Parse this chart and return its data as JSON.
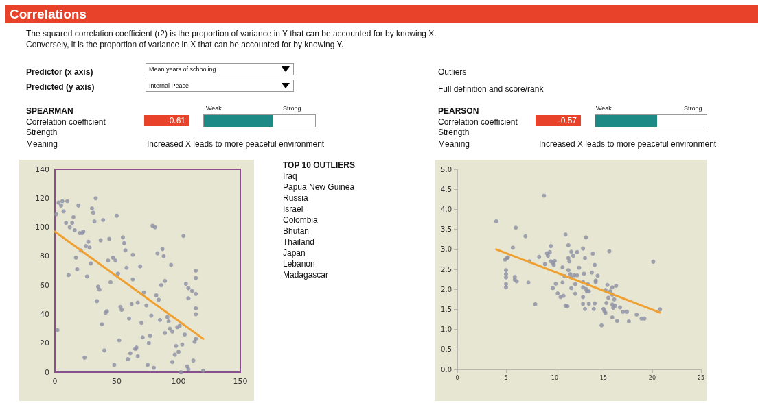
{
  "chart_data": [
    {
      "type": "other",
      "title": "Correlations",
      "annotations": [
        "The squared correlation coefficient (r2) is the proportion of variance in Y that can be accounted for by knowing X.",
        "Conversely, it is the proportion of variance in X that can be accounted for by knowing Y.",
        "Predictor (x axis)",
        "Mean years of schooling",
        "Predicted (y axis)",
        "Internal Peace",
        "SPEARMAN",
        "Weak",
        "Strong",
        "Correlation coefficient",
        "-0.61",
        "Strength",
        "Meaning",
        "Increased X leads to more peaceful environment",
        "Outliers",
        "Full definition and score/rank",
        "PEARSON",
        "Weak",
        "Strong",
        "Correlation coefficient",
        "-0.57",
        "Strength",
        "Meaning",
        "Increased X leads to more peaceful environment",
        "TOP 10 OUTLIERS",
        "Iraq",
        "Papua New Guinea",
        "Russia",
        "Israel",
        "Colombia",
        "Bhutan",
        "Thailand",
        "Japan",
        "Lebanon",
        "Madagascar"
      ]
    },
    {
      "type": "scatter",
      "xlim": [
        0,
        150
      ],
      "xticks": [
        0,
        50,
        100,
        150
      ],
      "ylim": [
        0,
        140
      ],
      "yticks": [
        0,
        20,
        40,
        60,
        80,
        100,
        120,
        140
      ],
      "grid": false,
      "marker": "circle",
      "series": [
        {
          "color": "#8c90a4",
          "x": [
            1,
            2,
            3,
            5,
            6,
            7,
            10,
            9,
            11,
            12,
            14,
            15,
            16,
            17,
            18,
            19,
            20,
            22,
            23,
            21,
            24,
            25,
            26,
            27,
            28,
            29,
            30,
            31,
            32,
            33,
            34,
            35,
            36,
            37,
            38,
            39,
            40,
            41,
            42,
            43,
            44,
            45,
            47,
            49,
            48,
            50,
            51,
            52,
            53,
            54,
            55,
            56,
            57,
            58,
            59,
            60,
            61,
            62,
            63,
            63,
            65,
            66,
            67,
            67,
            69,
            70,
            71,
            72,
            74,
            75,
            76,
            77,
            78,
            79,
            81,
            80,
            82,
            83,
            84,
            85,
            86,
            87,
            88,
            89,
            89,
            91,
            92,
            93,
            94,
            95,
            95,
            97,
            98,
            99,
            100,
            101,
            102,
            103,
            104,
            105,
            106,
            107,
            108,
            108,
            108,
            111,
            112,
            113,
            114,
            114,
            114,
            114,
            114,
            114,
            120
          ],
          "values": [
            109,
            29,
            117,
            115,
            118,
            111,
            118,
            103,
            67,
            100,
            103,
            107,
            98,
            79,
            71,
            115,
            96,
            96,
            97,
            84,
            10,
            87,
            66,
            90,
            86,
            75,
            113,
            110,
            104,
            120,
            49,
            59,
            57,
            91,
            33,
            105,
            15,
            41,
            42,
            77,
            92,
            62,
            79,
            77,
            5,
            108,
            68,
            22,
            45,
            43,
            93,
            89,
            84,
            72,
            9,
            37,
            13,
            47,
            81,
            64,
            16,
            17,
            48,
            11,
            73,
            34,
            24,
            55,
            46,
            5,
            20,
            25,
            39,
            101,
            100,
            3,
            53,
            82,
            50,
            36,
            60,
            85,
            80,
            63,
            27,
            38,
            35,
            30,
            74,
            7,
            28,
            12,
            18,
            31,
            14,
            32,
            0,
            19,
            94,
            26,
            61,
            4,
            2,
            58,
            51,
            56,
            8,
            21,
            23,
            70,
            65,
            54,
            44,
            40,
            1
          ]
        },
        {
          "type": "line",
          "color": "#f0a030",
          "marker": "none",
          "x": [
            0,
            120
          ],
          "values": [
            97,
            23
          ]
        }
      ]
    },
    {
      "type": "scatter",
      "xlim": [
        0,
        25
      ],
      "xticks": [
        0,
        5,
        10,
        15,
        20,
        25
      ],
      "ylim": [
        0,
        5
      ],
      "yticks": [
        {
          "value": 0,
          "label": "0.0"
        },
        0.5,
        {
          "value": 1,
          "label": "1.0"
        },
        1.5,
        {
          "value": 2,
          "label": "2.0"
        },
        2.5,
        {
          "value": 3,
          "label": "3.0"
        },
        3.5,
        {
          "value": 4,
          "label": "4.0"
        },
        4.5,
        {
          "value": 5,
          "label": "5.0"
        }
      ],
      "grid": false,
      "marker": "circle",
      "series": [
        {
          "color": "#8c90a4",
          "x": [
            4.0,
            4.9,
            5.1,
            5.2,
            5.0,
            5.0,
            5.0,
            5.0,
            5.0,
            5.7,
            6.0,
            5.9,
            5.9,
            6.1,
            7.0,
            7.4,
            7.3,
            8.0,
            8.4,
            8.9,
            9.0,
            9.2,
            9.3,
            9.5,
            9.6,
            9.6,
            9.8,
            9.9,
            10.0,
            9.8,
            10.1,
            10.3,
            10.6,
            10.8,
            10.8,
            10.9,
            11.0,
            11.1,
            11.1,
            11.3,
            11.4,
            11.4,
            11.4,
            11.5,
            11.6,
            11.7,
            11.7,
            11.7,
            11.9,
            12.0,
            12.1,
            12.1,
            12.3,
            12.3,
            12.5,
            12.9,
            13.0,
            12.9,
            12.9,
            12.9,
            12.9,
            13.1,
            13.1,
            13.2,
            13.2,
            13.3,
            13.5,
            13.5,
            13.4,
            13.8,
            13.9,
            14.1,
            14.1,
            14.0,
            14.2,
            14.2,
            14.4,
            14.8,
            15.0,
            15.1,
            15.2,
            15.2,
            15.3,
            15.4,
            15.5,
            15.6,
            15.7,
            15.9,
            15.9,
            15.9,
            15.9,
            16.0,
            16.1,
            16.2,
            16.3,
            16.4,
            16.7,
            17.0,
            17.4,
            17.6,
            18.4,
            18.9,
            19.2,
            20.1,
            20.8
          ],
          "values": [
            3.7,
            2.74,
            2.78,
            2.8,
            2.48,
            2.38,
            2.3,
            2.13,
            2.05,
            3.04,
            3.54,
            2.31,
            2.24,
            2.2,
            3.33,
            2.7,
            2.17,
            1.63,
            2.81,
            4.34,
            2.63,
            2.9,
            2.84,
            2.93,
            3.08,
            2.7,
            2.66,
            2.61,
            2.71,
            2.03,
            2.14,
            1.9,
            1.81,
            2.55,
            2.17,
            1.84,
            2.33,
            3.37,
            1.59,
            1.58,
            2.48,
            3.1,
            2.78,
            2.7,
            2.38,
            2.3,
            2.03,
            2.94,
            2.84,
            2.35,
            2.13,
            1.89,
            2.93,
            2.35,
            2.54,
            3.02,
            2.39,
            2.18,
            2.05,
            1.81,
            1.64,
            1.51,
            2.78,
            3.3,
            2.01,
            1.95,
            1.95,
            1.64,
            2.13,
            2.42,
            2.89,
            2.61,
            1.65,
            1.51,
            2.22,
            2.18,
            2.34,
            1.1,
            1.51,
            1.46,
            1.41,
            1.98,
            1.66,
            2.11,
            1.79,
            2.95,
            1.95,
            1.87,
            1.3,
            2.05,
            1.62,
            1.54,
            1.75,
            1.59,
            2.09,
            1.21,
            1.55,
            1.44,
            1.44,
            1.2,
            1.37,
            1.27,
            1.27,
            2.69,
            1.5
          ]
        },
        {
          "type": "line",
          "color": "#f0a030",
          "marker": "none",
          "x": [
            4.0,
            20.8
          ],
          "values": [
            3.0,
            1.42
          ]
        }
      ]
    }
  ]
}
